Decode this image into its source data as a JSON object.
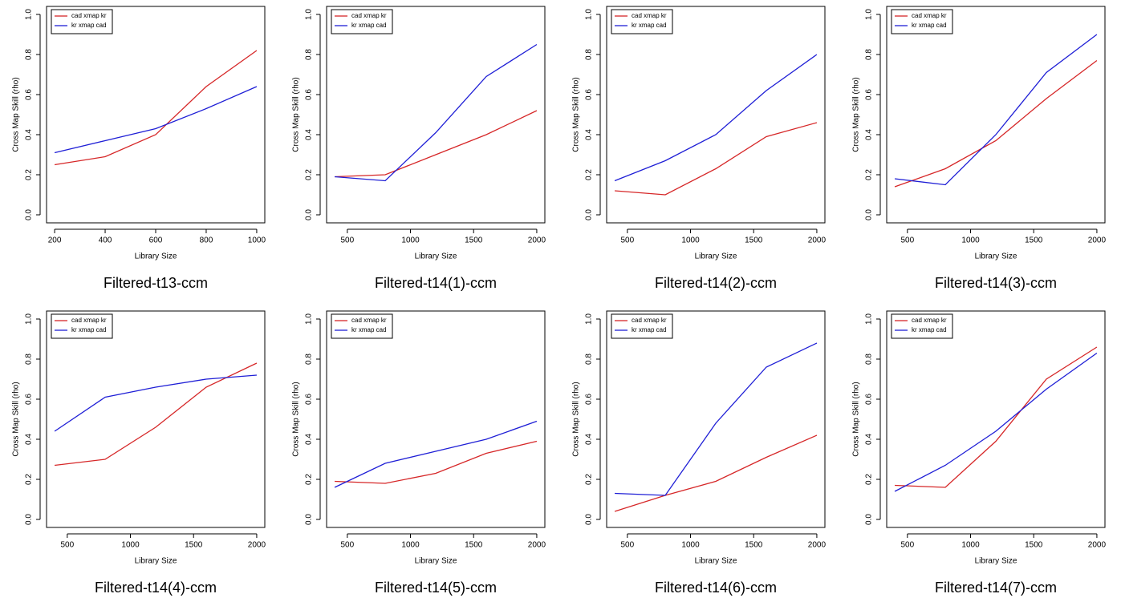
{
  "chart_data": [
    {
      "type": "line",
      "title": "Filtered-t13-ccm",
      "xlabel": "Library Size",
      "ylabel": "Cross Map Skill (rho)",
      "x": [
        200,
        400,
        600,
        800,
        1000
      ],
      "xlim": [
        168,
        1032
      ],
      "xticks": [
        200,
        400,
        600,
        800,
        1000
      ],
      "ylim": [
        -0.04,
        1.04
      ],
      "yticks": [
        {
          "value": 0,
          "label": "0.0"
        },
        0.2,
        0.4,
        0.6,
        0.8,
        {
          "value": 1,
          "label": "1.0"
        }
      ],
      "legend": "top-left",
      "series": [
        {
          "name": "cad xmap kr",
          "color": "#d62728",
          "values": [
            0.25,
            0.29,
            0.4,
            0.64,
            0.82
          ]
        },
        {
          "name": "kr xmap cad",
          "color": "#1f1fd6",
          "values": [
            0.31,
            0.37,
            0.43,
            0.53,
            0.64
          ]
        }
      ]
    },
    {
      "type": "line",
      "title": "Filtered-t14(1)-ccm",
      "xlabel": "Library Size",
      "ylabel": "Cross Map Skill (rho)",
      "x": [
        400,
        800,
        1200,
        1600,
        2000
      ],
      "xlim": [
        336,
        2064
      ],
      "xticks": [
        500,
        1000,
        1500,
        2000
      ],
      "ylim": [
        -0.04,
        1.04
      ],
      "yticks": [
        {
          "value": 0,
          "label": "0.0"
        },
        0.2,
        0.4,
        0.6,
        0.8,
        {
          "value": 1,
          "label": "1.0"
        }
      ],
      "legend": "top-left",
      "series": [
        {
          "name": "cad xmap kr",
          "color": "#d62728",
          "values": [
            0.19,
            0.2,
            0.3,
            0.4,
            0.52
          ]
        },
        {
          "name": "kr xmap cad",
          "color": "#1f1fd6",
          "values": [
            0.19,
            0.17,
            0.41,
            0.69,
            0.85
          ]
        }
      ]
    },
    {
      "type": "line",
      "title": "Filtered-t14(2)-ccm",
      "xlabel": "Library Size",
      "ylabel": "Cross Map Skill (rho)",
      "x": [
        400,
        800,
        1200,
        1600,
        2000
      ],
      "xlim": [
        336,
        2064
      ],
      "xticks": [
        500,
        1000,
        1500,
        2000
      ],
      "ylim": [
        -0.04,
        1.04
      ],
      "yticks": [
        {
          "value": 0,
          "label": "0.0"
        },
        0.2,
        0.4,
        0.6,
        0.8,
        {
          "value": 1,
          "label": "1.0"
        }
      ],
      "legend": "top-left",
      "series": [
        {
          "name": "cad xmap kr",
          "color": "#d62728",
          "values": [
            0.12,
            0.1,
            0.23,
            0.39,
            0.46
          ]
        },
        {
          "name": "kr xmap cad",
          "color": "#1f1fd6",
          "values": [
            0.17,
            0.27,
            0.4,
            0.62,
            0.8
          ]
        }
      ]
    },
    {
      "type": "line",
      "title": "Filtered-t14(3)-ccm",
      "xlabel": "Library Size",
      "ylabel": "Cross Map Skill (rho)",
      "x": [
        400,
        800,
        1200,
        1600,
        2000
      ],
      "xlim": [
        336,
        2064
      ],
      "xticks": [
        500,
        1000,
        1500,
        2000
      ],
      "ylim": [
        -0.04,
        1.04
      ],
      "yticks": [
        {
          "value": 0,
          "label": "0.0"
        },
        0.2,
        0.4,
        0.6,
        0.8,
        {
          "value": 1,
          "label": "1.0"
        }
      ],
      "legend": "top-left",
      "series": [
        {
          "name": "cad xmap kr",
          "color": "#d62728",
          "values": [
            0.14,
            0.23,
            0.37,
            0.58,
            0.77
          ]
        },
        {
          "name": "kr xmap cad",
          "color": "#1f1fd6",
          "values": [
            0.18,
            0.15,
            0.4,
            0.71,
            0.9
          ]
        }
      ]
    },
    {
      "type": "line",
      "title": "Filtered-t14(4)-ccm",
      "xlabel": "Library Size",
      "ylabel": "Cross Map Skill (rho)",
      "x": [
        400,
        800,
        1200,
        1600,
        2000
      ],
      "xlim": [
        336,
        2064
      ],
      "xticks": [
        500,
        1000,
        1500,
        2000
      ],
      "ylim": [
        -0.04,
        1.04
      ],
      "yticks": [
        {
          "value": 0,
          "label": "0.0"
        },
        0.2,
        0.4,
        0.6,
        0.8,
        {
          "value": 1,
          "label": "1.0"
        }
      ],
      "legend": "top-left",
      "series": [
        {
          "name": "cad xmap kr",
          "color": "#d62728",
          "values": [
            0.27,
            0.3,
            0.46,
            0.66,
            0.78
          ]
        },
        {
          "name": "kr xmap cad",
          "color": "#1f1fd6",
          "values": [
            0.44,
            0.61,
            0.66,
            0.7,
            0.72
          ]
        }
      ]
    },
    {
      "type": "line",
      "title": "Filtered-t14(5)-ccm",
      "xlabel": "Library Size",
      "ylabel": "Cross Map Skill (rho)",
      "x": [
        400,
        800,
        1200,
        1600,
        2000
      ],
      "xlim": [
        336,
        2064
      ],
      "xticks": [
        500,
        1000,
        1500,
        2000
      ],
      "ylim": [
        -0.04,
        1.04
      ],
      "yticks": [
        {
          "value": 0,
          "label": "0.0"
        },
        0.2,
        0.4,
        0.6,
        0.8,
        {
          "value": 1,
          "label": "1.0"
        }
      ],
      "legend": "top-left",
      "series": [
        {
          "name": "cad xmap kr",
          "color": "#d62728",
          "values": [
            0.19,
            0.18,
            0.23,
            0.33,
            0.39
          ]
        },
        {
          "name": "kr xmap cad",
          "color": "#1f1fd6",
          "values": [
            0.16,
            0.28,
            0.34,
            0.4,
            0.49
          ]
        }
      ]
    },
    {
      "type": "line",
      "title": "Filtered-t14(6)-ccm",
      "xlabel": "Library Size",
      "ylabel": "Cross Map Skill (rho)",
      "x": [
        400,
        800,
        1200,
        1600,
        2000
      ],
      "xlim": [
        336,
        2064
      ],
      "xticks": [
        500,
        1000,
        1500,
        2000
      ],
      "ylim": [
        -0.04,
        1.04
      ],
      "yticks": [
        {
          "value": 0,
          "label": "0.0"
        },
        0.2,
        0.4,
        0.6,
        0.8,
        {
          "value": 1,
          "label": "1.0"
        }
      ],
      "legend": "top-left",
      "series": [
        {
          "name": "cad xmap kr",
          "color": "#d62728",
          "values": [
            0.04,
            0.12,
            0.19,
            0.31,
            0.42
          ]
        },
        {
          "name": "kr xmap cad",
          "color": "#1f1fd6",
          "values": [
            0.13,
            0.12,
            0.48,
            0.76,
            0.88
          ]
        }
      ]
    },
    {
      "type": "line",
      "title": "Filtered-t14(7)-ccm",
      "xlabel": "Library Size",
      "ylabel": "Cross Map Skill (rho)",
      "x": [
        400,
        800,
        1200,
        1600,
        2000
      ],
      "xlim": [
        336,
        2064
      ],
      "xticks": [
        500,
        1000,
        1500,
        2000
      ],
      "ylim": [
        -0.04,
        1.04
      ],
      "yticks": [
        {
          "value": 0,
          "label": "0.0"
        },
        0.2,
        0.4,
        0.6,
        0.8,
        {
          "value": 1,
          "label": "1.0"
        }
      ],
      "legend": "top-left",
      "series": [
        {
          "name": "cad xmap kr",
          "color": "#d62728",
          "values": [
            0.17,
            0.16,
            0.39,
            0.7,
            0.86
          ]
        },
        {
          "name": "kr xmap cad",
          "color": "#1f1fd6",
          "values": [
            0.14,
            0.27,
            0.44,
            0.65,
            0.83
          ]
        }
      ]
    }
  ]
}
